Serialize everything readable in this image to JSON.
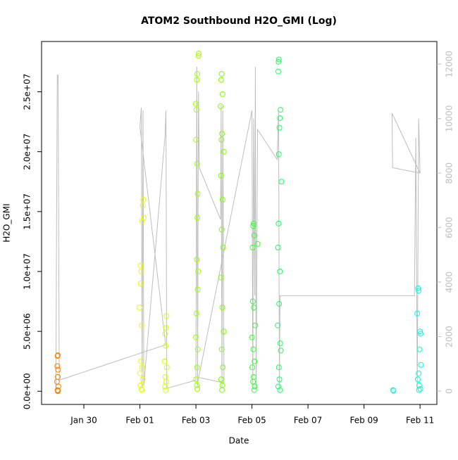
{
  "chart_data": {
    "type": "scatter",
    "title": "ATOM2 Southbound H2O_GMI (Log)",
    "xlabel": "Date",
    "ylabel": "H2O_GMI",
    "xlim": [
      -1.51,
      12.6
    ],
    "xticks": [
      {
        "value": 0,
        "label": "Jan 30"
      },
      {
        "value": 2,
        "label": "Feb 01"
      },
      {
        "value": 4,
        "label": "Feb 03"
      },
      {
        "value": 6,
        "label": "Feb 05"
      },
      {
        "value": 8,
        "label": "Feb 07"
      },
      {
        "value": 10,
        "label": "Feb 09"
      },
      {
        "value": 12,
        "label": "Feb 11"
      }
    ],
    "ylim": [
      -1100000,
      29200000
    ],
    "yticks": [
      {
        "value": 0,
        "label": "0.0e+00"
      },
      {
        "value": 5000000,
        "label": "5.0e+06"
      },
      {
        "value": 10000000,
        "label": "1.0e+07"
      },
      {
        "value": 15000000,
        "label": "1.5e+07"
      },
      {
        "value": 20000000,
        "label": "2.0e+07"
      },
      {
        "value": 25000000,
        "label": "2.5e+07"
      }
    ],
    "y2lim": [
      -490,
      12830
    ],
    "y2ticks": [
      0,
      2000,
      4000,
      6000,
      8000,
      10000,
      12000
    ],
    "series": [
      {
        "type": "line",
        "axis": "y2",
        "color": "#bebebe",
        "x": [
          -1.0,
          -0.95,
          -0.92,
          -0.88,
          2.92,
          2.0,
          2.05,
          2.08,
          2.11,
          2.14,
          2.9,
          2.93,
          2.96,
          4.0,
          4.03,
          4.06,
          4.09,
          4.12,
          4.88,
          4.9,
          4.93,
          4.96,
          5.0,
          4.1,
          6.0,
          6.03,
          6.06,
          6.1,
          6.12,
          6.15,
          6.2,
          6.9,
          6.95,
          6.98,
          7.0,
          11.8,
          11.85,
          11.9,
          11.95,
          12.0,
          11.0,
          11.02,
          12.0
        ],
        "values": [
          50,
          11600,
          11600,
          400,
          1700,
          9700,
          10400,
          100,
          10300,
          200,
          9400,
          10300,
          100,
          400,
          11900,
          200,
          11000,
          8200,
          6300,
          10500,
          100,
          10300,
          300,
          500,
          10300,
          200,
          10000,
          3500,
          11900,
          100,
          9600,
          8500,
          10300,
          100,
          3500,
          3500,
          9300,
          100,
          10000,
          8000,
          10200,
          8200,
          8000
        ]
      },
      {
        "color": "#ff8000",
        "x": [
          -0.93,
          -0.94,
          -0.95,
          -0.92,
          -0.93,
          -0.96,
          -0.91,
          -0.94,
          -0.92,
          -0.93
        ],
        "values": [
          3000000,
          2950000,
          2100000,
          1800000,
          1200000,
          800000,
          400000,
          100000,
          50000,
          0
        ]
      },
      {
        "color": "#e6ff00",
        "x": [
          2.12,
          2.1,
          2.14,
          2.08,
          2.02,
          2.05,
          2.03,
          1.99,
          2.06,
          2.04,
          2.08,
          2.0,
          2.1,
          2.02,
          2.05,
          2.07
        ],
        "values": [
          16000000,
          15500000,
          14500000,
          14200000,
          10500000,
          10000000,
          9000000,
          7000000,
          5500000,
          2500000,
          2000000,
          1500000,
          1000000,
          500000,
          200000,
          100000
        ]
      },
      {
        "color": "#d4ff00",
        "x": [
          2.95,
          2.93,
          2.9,
          2.92,
          2.88,
          2.96,
          2.91,
          2.94,
          2.9,
          2.92
        ],
        "values": [
          6300000,
          5300000,
          4800000,
          3800000,
          2500000,
          2000000,
          1200000,
          800000,
          400000,
          100000
        ]
      },
      {
        "color": "#9fff00",
        "x": [
          4.1,
          4.09,
          4.05,
          4.03,
          3.99,
          4.02,
          4.0,
          4.04,
          4.06,
          4.05,
          4.03,
          4.08,
          4.06,
          4.02,
          4.0,
          4.07,
          4.04,
          4.01,
          4.03,
          4.05
        ],
        "values": [
          28200000,
          28000000,
          26500000,
          26000000,
          24000000,
          23500000,
          21000000,
          19000000,
          16500000,
          14500000,
          11000000,
          10000000,
          8500000,
          6500000,
          4500000,
          3500000,
          2000000,
          1000000,
          500000,
          200000
        ]
      },
      {
        "color": "#80ff00",
        "x": [
          4.92,
          4.9,
          4.95,
          4.88,
          4.93,
          4.91,
          5.0,
          4.89,
          4.95,
          4.92,
          4.97,
          4.9,
          4.94,
          4.99,
          4.92,
          4.96,
          4.9,
          4.94,
          4.93
        ],
        "values": [
          26500000,
          26000000,
          24800000,
          23800000,
          21500000,
          21000000,
          20000000,
          18000000,
          16000000,
          13500000,
          12000000,
          9500000,
          7000000,
          5000000,
          3500000,
          2000000,
          1000000,
          500000,
          100000
        ]
      },
      {
        "color": "#33ff33",
        "x": [
          6.06,
          6.04,
          6.08,
          6.02,
          6.2,
          6.03,
          6.07,
          6.12,
          6.0,
          6.05,
          6.09,
          6.01,
          6.06,
          6.04,
          6.1,
          6.08
        ],
        "values": [
          14000000,
          13800000,
          13000000,
          12000000,
          12300000,
          7500000,
          7000000,
          5500000,
          4500000,
          3500000,
          2500000,
          2000000,
          1200000,
          800000,
          400000,
          100000
        ]
      },
      {
        "color": "#1aff60",
        "x": [
          6.96,
          6.95,
          6.94,
          7.02,
          7.0,
          6.98,
          6.96,
          7.05,
          6.95,
          6.93,
          7.0,
          6.97,
          6.92,
          7.01,
          7.03,
          6.96,
          6.98,
          6.94,
          7.0
        ],
        "values": [
          27700000,
          27500000,
          26700000,
          23500000,
          22800000,
          22000000,
          19800000,
          17500000,
          14000000,
          12000000,
          10000000,
          7300000,
          5500000,
          4000000,
          3400000,
          2000000,
          1000000,
          400000,
          100000
        ]
      },
      {
        "color": "#00ffcc",
        "x": [
          11.04,
          11.05
        ],
        "values": [
          100000,
          50000
        ]
      },
      {
        "color": "#00ffd5",
        "x": [
          11.93,
          11.95,
          11.9,
          12.0,
          12.02,
          11.98,
          12.03,
          11.95,
          11.92,
          11.97,
          12.01,
          11.96
        ],
        "values": [
          8600000,
          8400000,
          6500000,
          5000000,
          4800000,
          3500000,
          2200000,
          1500000,
          1000000,
          500000,
          200000,
          100000
        ]
      }
    ]
  }
}
